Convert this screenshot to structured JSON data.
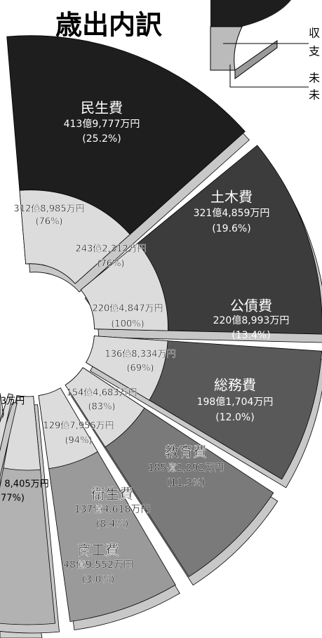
{
  "chart_data": {
    "type": "pie",
    "title": "歳出内訳",
    "legend_fragments": [
      "収",
      "支",
      "未",
      "未"
    ],
    "categories": [
      "民生費",
      "土木費",
      "公債費",
      "総務費",
      "教育費",
      "衛生費",
      "商工費"
    ],
    "values": [
      25.2,
      19.6,
      13.4,
      12.0,
      11.3,
      8.4,
      3.0
    ],
    "value_labels": [
      "(25.2%)",
      "(19.6%)",
      "(13.4%)",
      "(12.0%)",
      "(11.3%)",
      "(8.4%)",
      "(3.0%)"
    ],
    "amount_labels": [
      "413億9,777万円",
      "321億4,859万円",
      "220億8,993万円",
      "198億1,704万円",
      "185億2,292万円",
      "137億4,618万円",
      "48億9,552万円"
    ],
    "spent_labels": [
      "312億8,985万円",
      "243億2,312万円",
      "220億4,847万円",
      "136億8,334万円",
      "154億4,683万円",
      "129億7,956万円"
    ],
    "spent_rate_labels": [
      "(76%)",
      "(76%)",
      "(100%)",
      "(69%)",
      "(83%)",
      "(94%)"
    ],
    "cropped_labels": [
      "3万円",
      ")",
      "8,405万円",
      "77%)"
    ],
    "colors": [
      "#1e1e1e",
      "#3c3c3c",
      "#595959",
      "#7a7a7a",
      "#9a9a9a",
      "#b2b2b2",
      "#cdcdcd"
    ]
  }
}
